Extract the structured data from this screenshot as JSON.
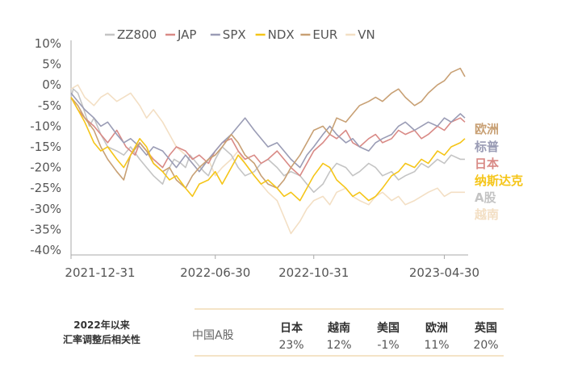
{
  "chart_data": {
    "type": "line",
    "title": "",
    "xlabel": "",
    "ylabel": "",
    "ylim": [
      -40,
      10
    ],
    "y_ticks": [
      "10%",
      "5%",
      "0%",
      "-5%",
      "-10%",
      "-15%",
      "-20%",
      "-25%",
      "-30%",
      "-35%",
      "-40%"
    ],
    "x_ticks": [
      "2021-12-31",
      "2022-06-30",
      "2022-10-31",
      "2023-04-30"
    ],
    "legend_position": "top",
    "grid": false,
    "series": [
      {
        "name": "ZZ800",
        "color": "#c4c4c4",
        "end_label": "A股",
        "x": [
          0,
          0.1,
          0.3,
          0.5,
          0.8,
          1.0,
          1.3,
          1.6,
          2.0,
          2.3,
          2.6,
          3.0,
          3.3,
          3.6,
          4.0,
          4.2,
          4.5,
          4.8,
          5.0,
          5.2,
          5.5,
          5.8,
          6.0,
          6.3,
          6.6,
          7.0,
          7.3,
          7.6,
          8.0,
          8.3,
          8.6,
          9.0,
          9.3,
          9.6,
          10.0,
          10.3,
          10.6,
          11.0,
          11.3,
          11.6,
          12.0,
          12.3,
          12.6,
          13.0,
          13.3,
          13.6,
          14.0,
          14.3,
          14.6,
          15.0,
          15.3,
          15.6,
          16.0,
          16.3,
          16.6,
          17.0,
          17.2
        ],
        "values": [
          -3,
          -1,
          -2,
          -5,
          -10,
          -8,
          -12,
          -15,
          -16,
          -17,
          -15,
          -18,
          -20,
          -22,
          -24,
          -21,
          -18,
          -19,
          -20,
          -17,
          -19,
          -21,
          -22,
          -18,
          -15,
          -17,
          -20,
          -22,
          -21,
          -19,
          -18,
          -20,
          -22,
          -21,
          -22,
          -24,
          -26,
          -24,
          -21,
          -19,
          -20,
          -22,
          -21,
          -19,
          -20,
          -22,
          -21,
          -23,
          -22,
          -21,
          -19,
          -20,
          -18,
          -19,
          -17,
          -18,
          -18
        ]
      },
      {
        "name": "JAP",
        "color": "#d98a86",
        "end_label": "日本",
        "x": [
          0,
          0.3,
          0.6,
          1.0,
          1.3,
          1.6,
          2.0,
          2.4,
          2.8,
          3.0,
          3.3,
          3.6,
          4.0,
          4.3,
          4.6,
          5.0,
          5.3,
          5.6,
          6.0,
          6.3,
          6.6,
          7.0,
          7.3,
          7.6,
          8.0,
          8.3,
          8.6,
          9.0,
          9.3,
          9.6,
          10.0,
          10.3,
          10.6,
          11.0,
          11.3,
          11.6,
          12.0,
          12.3,
          12.6,
          13.0,
          13.3,
          13.6,
          14.0,
          14.3,
          14.6,
          15.0,
          15.3,
          15.6,
          16.0,
          16.3,
          16.6,
          17.0,
          17.2
        ],
        "values": [
          -3,
          -6,
          -8,
          -10,
          -12,
          -14,
          -11,
          -15,
          -17,
          -14,
          -16,
          -18,
          -20,
          -17,
          -15,
          -16,
          -18,
          -17,
          -19,
          -16,
          -14,
          -13,
          -16,
          -18,
          -17,
          -19,
          -18,
          -16,
          -18,
          -20,
          -22,
          -19,
          -16,
          -14,
          -12,
          -13,
          -11,
          -14,
          -15,
          -13,
          -12,
          -14,
          -13,
          -11,
          -12,
          -11,
          -13,
          -12,
          -10,
          -11,
          -9,
          -8,
          -9
        ]
      },
      {
        "name": "SPX",
        "color": "#9a9cb5",
        "end_label": "标普",
        "x": [
          0,
          0.3,
          0.6,
          1.0,
          1.3,
          1.6,
          2.0,
          2.3,
          2.6,
          3.0,
          3.3,
          3.6,
          4.0,
          4.3,
          4.6,
          5.0,
          5.3,
          5.6,
          6.0,
          6.3,
          6.6,
          7.0,
          7.3,
          7.6,
          8.0,
          8.3,
          8.6,
          9.0,
          9.3,
          9.6,
          10.0,
          10.3,
          10.6,
          11.0,
          11.3,
          11.6,
          12.0,
          12.3,
          12.6,
          13.0,
          13.3,
          13.6,
          14.0,
          14.3,
          14.6,
          15.0,
          15.3,
          15.6,
          16.0,
          16.3,
          16.6,
          17.0,
          17.2
        ],
        "values": [
          -2,
          -4,
          -6,
          -8,
          -10,
          -9,
          -12,
          -14,
          -13,
          -15,
          -17,
          -15,
          -16,
          -18,
          -20,
          -17,
          -19,
          -21,
          -18,
          -16,
          -14,
          -12,
          -10,
          -8,
          -11,
          -13,
          -15,
          -14,
          -16,
          -18,
          -20,
          -17,
          -15,
          -12,
          -10,
          -12,
          -14,
          -13,
          -15,
          -16,
          -14,
          -13,
          -12,
          -10,
          -9,
          -11,
          -10,
          -9,
          -10,
          -8,
          -9,
          -7,
          -8
        ]
      },
      {
        "name": "NDX",
        "color": "#f5c518",
        "end_label": "纳斯达克",
        "x": [
          0,
          0.3,
          0.6,
          1.0,
          1.3,
          1.6,
          2.0,
          2.3,
          2.6,
          3.0,
          3.3,
          3.6,
          4.0,
          4.3,
          4.6,
          5.0,
          5.3,
          5.6,
          6.0,
          6.3,
          6.6,
          7.0,
          7.3,
          7.6,
          8.0,
          8.3,
          8.6,
          9.0,
          9.3,
          9.6,
          10.0,
          10.3,
          10.6,
          11.0,
          11.3,
          11.6,
          12.0,
          12.3,
          12.6,
          13.0,
          13.3,
          13.6,
          14.0,
          14.3,
          14.6,
          15.0,
          15.3,
          15.6,
          16.0,
          16.3,
          16.6,
          17.0,
          17.2
        ],
        "values": [
          -3,
          -6,
          -9,
          -14,
          -16,
          -15,
          -18,
          -20,
          -17,
          -13,
          -15,
          -19,
          -21,
          -23,
          -22,
          -25,
          -27,
          -24,
          -23,
          -21,
          -24,
          -20,
          -17,
          -19,
          -22,
          -24,
          -23,
          -25,
          -27,
          -26,
          -28,
          -25,
          -22,
          -19,
          -20,
          -23,
          -25,
          -27,
          -26,
          -28,
          -27,
          -25,
          -22,
          -21,
          -19,
          -20,
          -18,
          -19,
          -16,
          -17,
          -15,
          -14,
          -13
        ]
      },
      {
        "name": "EUR",
        "color": "#c8a074",
        "end_label": "欧洲",
        "x": [
          0,
          0.3,
          0.6,
          1.0,
          1.3,
          1.6,
          2.0,
          2.3,
          2.6,
          3.0,
          3.3,
          3.6,
          4.0,
          4.3,
          4.6,
          5.0,
          5.3,
          5.6,
          6.0,
          6.3,
          6.6,
          7.0,
          7.3,
          7.6,
          8.0,
          8.3,
          8.6,
          9.0,
          9.3,
          9.6,
          10.0,
          10.3,
          10.6,
          11.0,
          11.3,
          11.6,
          12.0,
          12.3,
          12.6,
          13.0,
          13.3,
          13.6,
          14.0,
          14.3,
          14.6,
          15.0,
          15.3,
          15.6,
          16.0,
          16.3,
          16.6,
          17.0,
          17.2
        ],
        "values": [
          -3,
          -5,
          -8,
          -11,
          -15,
          -18,
          -21,
          -23,
          -17,
          -14,
          -16,
          -19,
          -21,
          -20,
          -23,
          -25,
          -22,
          -20,
          -18,
          -17,
          -15,
          -12,
          -14,
          -17,
          -19,
          -22,
          -24,
          -25,
          -23,
          -20,
          -17,
          -14,
          -11,
          -10,
          -12,
          -8,
          -9,
          -7,
          -5,
          -4,
          -3,
          -4,
          -2,
          -1,
          -3,
          -5,
          -4,
          -2,
          0,
          1,
          3,
          4,
          2
        ]
      },
      {
        "name": "VN",
        "color": "#f3dfc4",
        "end_label": "越南",
        "x": [
          0,
          0.3,
          0.6,
          1.0,
          1.3,
          1.6,
          2.0,
          2.3,
          2.6,
          3.0,
          3.3,
          3.6,
          4.0,
          4.3,
          4.6,
          5.0,
          5.3,
          5.6,
          6.0,
          6.3,
          6.6,
          7.0,
          7.3,
          7.6,
          8.0,
          8.3,
          8.6,
          9.0,
          9.3,
          9.6,
          10.0,
          10.3,
          10.6,
          11.0,
          11.3,
          11.6,
          12.0,
          12.3,
          12.6,
          13.0,
          13.3,
          13.6,
          14.0,
          14.3,
          14.6,
          15.0,
          15.3,
          15.6,
          16.0,
          16.3,
          16.6,
          17.0,
          17.2
        ],
        "values": [
          -1,
          0,
          -3,
          -5,
          -3,
          -2,
          -4,
          -3,
          -2,
          -5,
          -8,
          -6,
          -9,
          -12,
          -15,
          -17,
          -19,
          -21,
          -18,
          -22,
          -20,
          -18,
          -16,
          -19,
          -22,
          -24,
          -26,
          -28,
          -32,
          -36,
          -33,
          -30,
          -28,
          -27,
          -29,
          -26,
          -25,
          -27,
          -28,
          -29,
          -27,
          -26,
          -28,
          -27,
          -29,
          -28,
          -27,
          -26,
          -25,
          -27,
          -26,
          -26,
          -26
        ]
      }
    ]
  },
  "table": {
    "title_line1": "2022年以来",
    "title_line2": "汇率调整后相关性",
    "row_label": "中国A股",
    "columns": [
      {
        "header": "日本",
        "value": "23%"
      },
      {
        "header": "越南",
        "value": "12%"
      },
      {
        "header": "美国",
        "value": "-1%"
      },
      {
        "header": "欧洲",
        "value": "11%"
      },
      {
        "header": "英国",
        "value": "20%"
      }
    ]
  },
  "colors": {
    "axis": "#aaaaaa",
    "table_rule": "#e8c98f"
  }
}
